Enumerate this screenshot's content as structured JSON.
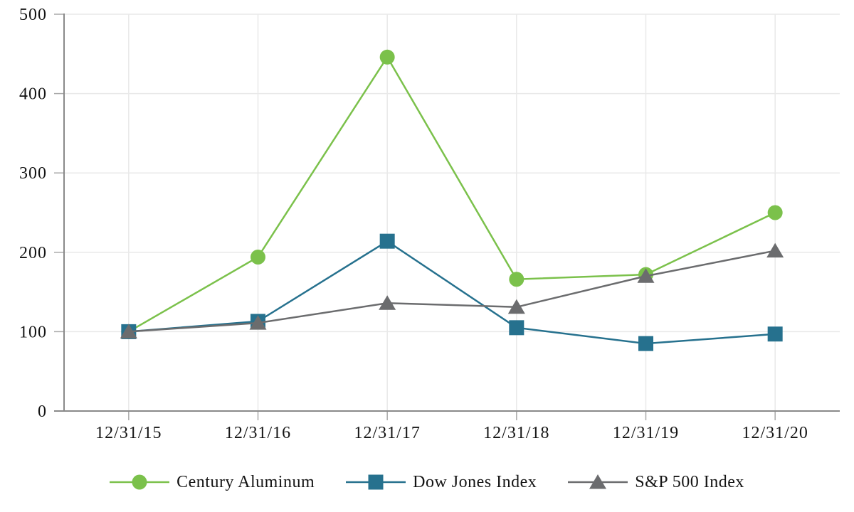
{
  "chart_data": {
    "type": "line",
    "title": "",
    "xlabel": "",
    "ylabel": "",
    "categories": [
      "12/31/15",
      "12/31/16",
      "12/31/17",
      "12/31/18",
      "12/31/19",
      "12/31/20"
    ],
    "series": [
      {
        "name": "Century Aluminum",
        "marker": "circle",
        "color": "#7BC14B",
        "values": [
          100,
          194,
          446,
          166,
          172,
          250
        ]
      },
      {
        "name": "Dow Jones Index",
        "marker": "square",
        "color": "#26718E",
        "values": [
          100,
          113,
          214,
          105,
          85,
          97
        ]
      },
      {
        "name": "S&P 500 Index",
        "marker": "triangle",
        "color": "#6B6C6E",
        "values": [
          100,
          111,
          136,
          131,
          170,
          202
        ]
      }
    ],
    "ylim": [
      0,
      500
    ],
    "yticks": [
      0,
      100,
      200,
      300,
      400,
      500
    ],
    "ytick_labels": [
      "0",
      "100",
      "200",
      "300",
      "400",
      "500"
    ],
    "grid": true,
    "legend_position": "bottom",
    "colors": {
      "axis": "#8A8A8A",
      "tick": "#A9A9A9",
      "grid": "#E9E9E9",
      "text": "#141414",
      "background": "#FFFFFF"
    }
  }
}
